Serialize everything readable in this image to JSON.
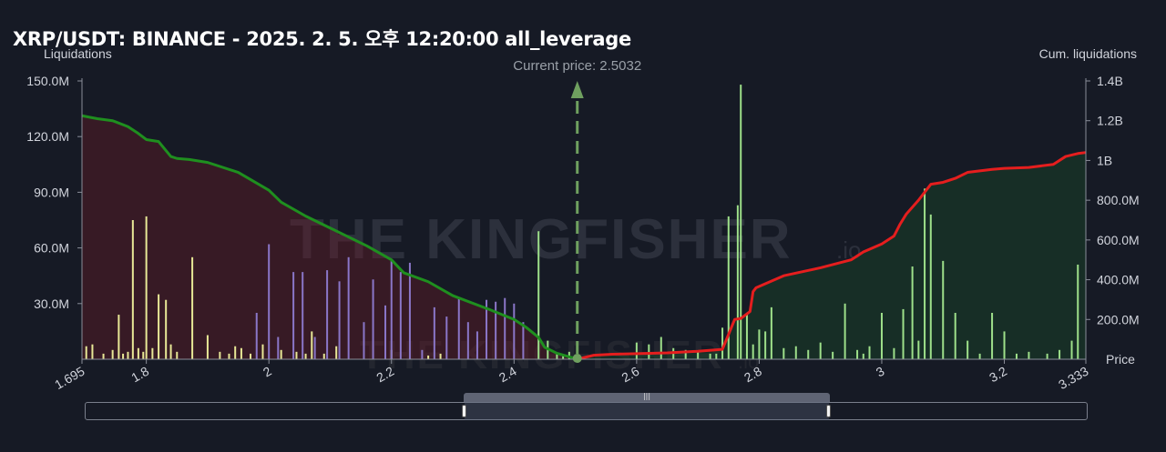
{
  "header": {
    "title": "XRP/USDT: BINANCE - 2025. 2. 5. 오후 12:20:00 all_leverage"
  },
  "watermark": {
    "text": "THE KINGFISHER",
    "suffix": ".io"
  },
  "colors": {
    "background": "#161a25",
    "short_cum_line": "#1f8f1f",
    "long_cum_line": "#e51e1e",
    "short_fill": "rgba(110,25,40,0.38)",
    "long_fill": "rgba(25,85,40,0.35)",
    "bar_yellow": "#e8e896",
    "bar_purple": "#8a76c8",
    "bar_green": "#9ee08a",
    "price_marker": "#6fa05f"
  },
  "chart_data": {
    "type": "bar",
    "xlabel": "Price",
    "ylabel_left": "Liquidations",
    "ylabel_right": "Cum. liquidations",
    "current_price_label": "Current price: 2.5032",
    "current_price": 2.5032,
    "xlim": [
      1.695,
      3.333
    ],
    "ylim_left": [
      0,
      150000000
    ],
    "ylim_right": [
      0,
      1400000000
    ],
    "x_ticks": [
      "1.695",
      "1.8",
      "2",
      "2.2",
      "2.4",
      "2.6",
      "2.8",
      "3",
      "3.2",
      "3.333"
    ],
    "x_tick_values": [
      1.695,
      1.8,
      2,
      2.2,
      2.4,
      2.6,
      2.8,
      3,
      3.2,
      3.333
    ],
    "y_left_ticks": [
      "30.0M",
      "60.0M",
      "90.0M",
      "120.0M",
      "150.0M"
    ],
    "y_left_tick_values": [
      30000000,
      60000000,
      90000000,
      120000000,
      150000000
    ],
    "y_right_ticks": [
      "200.0M",
      "400.0M",
      "600.0M",
      "800.0M",
      "1B",
      "1.2B",
      "1.4B"
    ],
    "y_right_tick_values": [
      200000000,
      400000000,
      600000000,
      800000000,
      1000000000,
      1200000000,
      1400000000
    ],
    "series": [
      {
        "name": "short_liquidations",
        "color": "#e8e896",
        "x": [
          1.702,
          1.712,
          1.73,
          1.745,
          1.755,
          1.762,
          1.77,
          1.778,
          1.787,
          1.795,
          1.8,
          1.81,
          1.82,
          1.832,
          1.84,
          1.85,
          1.875,
          1.9,
          1.92,
          1.935,
          1.945,
          1.955,
          1.97,
          1.99,
          2.02,
          2.045,
          2.06,
          2.07,
          2.09,
          2.11,
          2.2,
          2.26,
          2.28
        ],
        "values": [
          7000000,
          8000000,
          3000000,
          5000000,
          24000000,
          3000000,
          4000000,
          75000000,
          6000000,
          4000000,
          77000000,
          6000000,
          35000000,
          32000000,
          8000000,
          4000000,
          55000000,
          13000000,
          4000000,
          3000000,
          7000000,
          6000000,
          3000000,
          8000000,
          5000000,
          4000000,
          3000000,
          15000000,
          3000000,
          7000000,
          5000000,
          2000000,
          3000000
        ]
      },
      {
        "name": "short_liquidations_purple",
        "color": "#8a76c8",
        "x": [
          1.98,
          2.0,
          2.015,
          2.04,
          2.055,
          2.075,
          2.095,
          2.115,
          2.13,
          2.155,
          2.17,
          2.19,
          2.2,
          2.215,
          2.23,
          2.25,
          2.27,
          2.29,
          2.31,
          2.325,
          2.34,
          2.355,
          2.37,
          2.385,
          2.4,
          2.415
        ],
        "values": [
          25000000,
          62000000,
          12000000,
          47000000,
          47000000,
          12000000,
          48000000,
          42000000,
          55000000,
          20000000,
          43000000,
          29000000,
          53000000,
          47000000,
          52000000,
          5000000,
          28000000,
          23000000,
          33000000,
          20000000,
          15000000,
          32000000,
          31000000,
          33000000,
          30000000,
          20000000
        ]
      },
      {
        "name": "long_liquidations",
        "color": "#9ee08a",
        "x": [
          2.44,
          2.455,
          2.47,
          2.48,
          2.49,
          2.6,
          2.62,
          2.64,
          2.66,
          2.68,
          2.7,
          2.72,
          2.73,
          2.74,
          2.75,
          2.765,
          2.77,
          2.78,
          2.79,
          2.8,
          2.81,
          2.82,
          2.84,
          2.86,
          2.88,
          2.9,
          2.92,
          2.94,
          2.96,
          2.97,
          2.98,
          3.0,
          3.02,
          3.035,
          3.05,
          3.06,
          3.07,
          3.08,
          3.1,
          3.12,
          3.14,
          3.16,
          3.18,
          3.2,
          3.22,
          3.24,
          3.27,
          3.29,
          3.31,
          3.32
        ],
        "values": [
          69000000,
          10000000,
          3000000,
          2000000,
          4000000,
          9000000,
          8000000,
          12000000,
          6000000,
          5000000,
          4000000,
          3000000,
          3000000,
          17000000,
          77000000,
          83000000,
          148000000,
          24000000,
          8000000,
          16000000,
          15000000,
          28000000,
          6000000,
          7000000,
          5000000,
          9000000,
          4000000,
          30000000,
          5000000,
          3000000,
          7000000,
          25000000,
          6000000,
          27000000,
          50000000,
          10000000,
          92000000,
          78000000,
          53000000,
          25000000,
          10000000,
          3000000,
          25000000,
          15000000,
          3000000,
          4000000,
          3000000,
          5000000,
          10000000,
          51000000
        ]
      },
      {
        "name": "cumulative_short",
        "color": "#1f8f1f",
        "x": [
          1.695,
          1.72,
          1.745,
          1.77,
          1.785,
          1.8,
          1.82,
          1.84,
          1.85,
          1.87,
          1.9,
          1.95,
          2.0,
          2.02,
          2.06,
          2.1,
          2.16,
          2.2,
          2.22,
          2.26,
          2.3,
          2.36,
          2.4,
          2.42,
          2.44,
          2.45,
          2.47,
          2.4925,
          2.5032
        ],
        "values": [
          1225000000,
          1210000000,
          1200000000,
          1170000000,
          1140000000,
          1105000000,
          1095000000,
          1020000000,
          1010000000,
          1005000000,
          990000000,
          940000000,
          850000000,
          790000000,
          720000000,
          660000000,
          570000000,
          500000000,
          435000000,
          390000000,
          320000000,
          250000000,
          200000000,
          160000000,
          110000000,
          60000000,
          30000000,
          10000000,
          2000000
        ]
      },
      {
        "name": "cumulative_long",
        "color": "#e51e1e",
        "x": [
          2.5032,
          2.53,
          2.56,
          2.6,
          2.65,
          2.7,
          2.74,
          2.76,
          2.77,
          2.785,
          2.79,
          2.795,
          2.81,
          2.84,
          2.9,
          2.95,
          2.97,
          3.0,
          3.02,
          3.03,
          3.04,
          3.06,
          3.08,
          3.1,
          3.12,
          3.14,
          3.18,
          3.2,
          3.24,
          3.28,
          3.3,
          3.32,
          3.333
        ],
        "values": [
          0,
          20000000,
          25000000,
          28000000,
          32000000,
          40000000,
          50000000,
          200000000,
          205000000,
          240000000,
          340000000,
          360000000,
          380000000,
          420000000,
          460000000,
          500000000,
          540000000,
          580000000,
          620000000,
          680000000,
          730000000,
          800000000,
          880000000,
          890000000,
          910000000,
          940000000,
          955000000,
          960000000,
          965000000,
          980000000,
          1020000000,
          1035000000,
          1040000000
        ]
      }
    ]
  }
}
